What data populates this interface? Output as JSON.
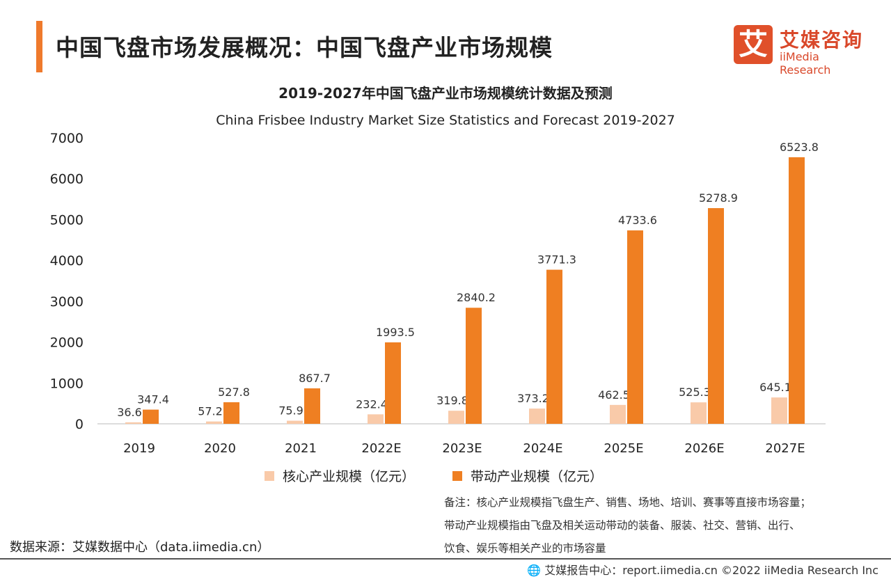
{
  "header": {
    "title": "中国飞盘市场发展概况：中国飞盘产业市场规模",
    "logo_icon": "艾",
    "logo_cn": "艾媒咨询",
    "logo_en": "iiMedia Research",
    "accent_color": "#ef7a2c"
  },
  "chart_data": {
    "type": "bar",
    "title": "2019-2027年中国飞盘产业市场规模统计数据及预测",
    "subtitle": "China Frisbee Industry Market Size Statistics and Forecast 2019-2027",
    "categories": [
      "2019",
      "2020",
      "2021",
      "2022E",
      "2023E",
      "2024E",
      "2025E",
      "2026E",
      "2027E"
    ],
    "series": [
      {
        "name": "核心产业规模（亿元）",
        "color": "#f9caa9",
        "values": [
          36.6,
          57.2,
          75.9,
          232.4,
          319.8,
          373.2,
          462.5,
          525.3,
          645.1
        ]
      },
      {
        "name": "带动产业规模（亿元）",
        "color": "#ef7f22",
        "values": [
          347.4,
          527.8,
          867.7,
          1993.5,
          2840.2,
          3771.3,
          4733.6,
          5278.9,
          6523.8
        ]
      }
    ],
    "yticks": [
      "0",
      "1000",
      "2000",
      "3000",
      "4000",
      "5000",
      "6000",
      "7000"
    ],
    "ylim": [
      0,
      7000
    ],
    "grid": false,
    "legend": "bottom"
  },
  "note": [
    "备注：核心产业规模指飞盘生产、销售、场地、培训、赛事等直接市场容量；",
    "带动产业规模指由飞盘及相关运动带动的装备、服装、社交、营销、出行、",
    "饮食、娱乐等相关产业的市场容量"
  ],
  "source": "数据来源：艾媒数据中心（data.iimedia.cn）",
  "footer": "艾媒报告中心：report.iimedia.cn   ©2022  iiMedia Research  Inc"
}
